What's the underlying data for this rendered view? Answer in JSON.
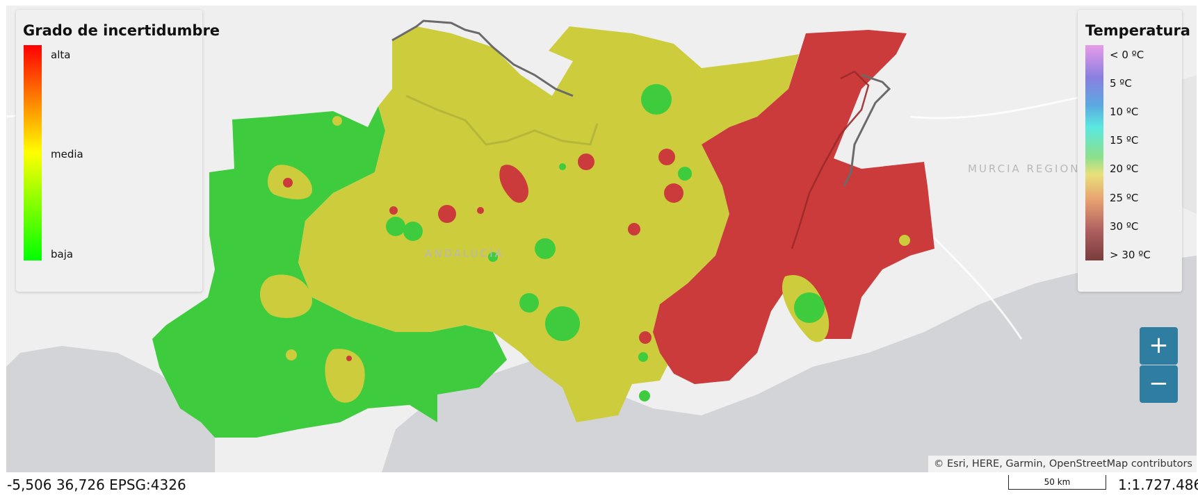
{
  "map": {
    "place_labels": [
      "ANDALUCÍA",
      "MURCIA REGION"
    ],
    "colors": {
      "background": "#efefef",
      "sea": "#d2d3d6",
      "uncertainty_high": "#cc3b3b",
      "uncertainty_medium": "#cccc3c",
      "uncertainty_low": "#3ecc3e",
      "border": "#666666"
    }
  },
  "uncertainty_legend": {
    "title": "Grado de incertidumbre",
    "labels": {
      "high": "alta",
      "medium": "media",
      "low": "baja"
    },
    "gradient": [
      "#ff0000",
      "#ffff00",
      "#00ff00"
    ]
  },
  "temperature_legend": {
    "title": "Temperatura",
    "labels": [
      "< 0 ºC",
      "5 ºC",
      "10 ºC",
      "15 ºC",
      "20 ºC",
      "25 ºC",
      "30 ºC",
      "> 30 ºC"
    ],
    "gradient": [
      "#e89be8",
      "#8a7fe0",
      "#5aa9e0",
      "#5ae8e0",
      "#8ce08c",
      "#e8e07a",
      "#e8a070",
      "#b06060",
      "#7a3c3c"
    ]
  },
  "controls": {
    "zoom_in": "+",
    "zoom_out": "−"
  },
  "attribution": "© Esri, HERE, Garmin, OpenStreetMap contributors",
  "status": {
    "coordinates": "-5,506 36,726 EPSG:4326",
    "scale_bar": "50 km",
    "scale_ratio": "1:1.727.486"
  }
}
